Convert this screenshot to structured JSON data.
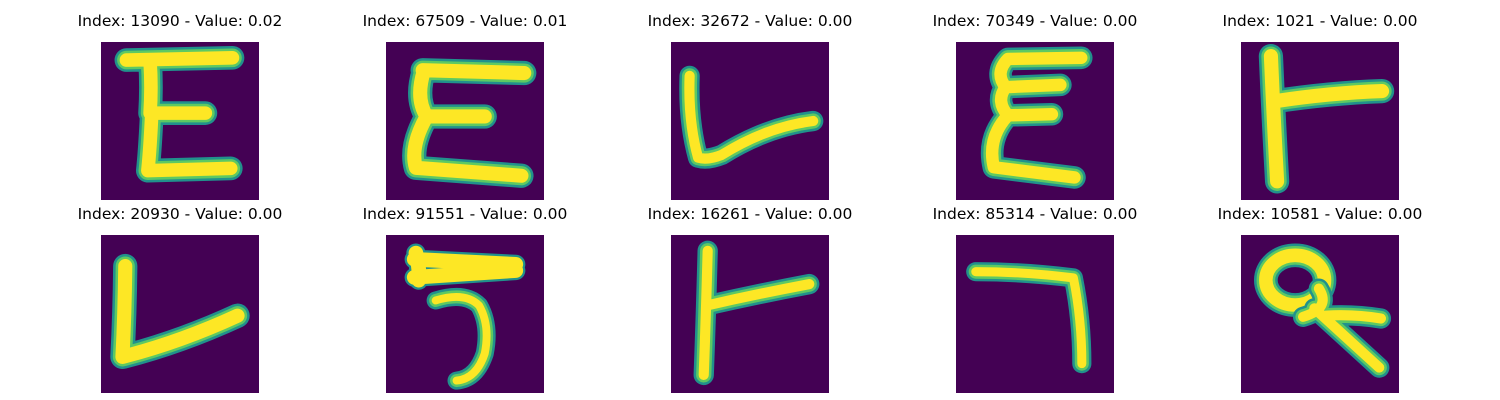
{
  "colors": {
    "background": "#440154",
    "stroke_core": "#fde725",
    "stroke_mid": "#5ec962",
    "stroke_edge": "#21918c",
    "stroke_outer": "#3b528b"
  },
  "panels": [
    {
      "index_label": "Index: 13090 - Value: 0.02",
      "glyph": "E"
    },
    {
      "index_label": "Index: 67509 - Value: 0.01",
      "glyph": "E"
    },
    {
      "index_label": "Index: 32672 - Value: 0.00",
      "glyph": "V-shape"
    },
    {
      "index_label": "Index: 70349 - Value: 0.00",
      "glyph": "E"
    },
    {
      "index_label": "Index: 1021 - Value: 0.00",
      "glyph": "T-rotated"
    },
    {
      "index_label": "Index: 20930 - Value: 0.00",
      "glyph": "L-shape"
    },
    {
      "index_label": "Index: 91551 - Value: 0.00",
      "glyph": "5-like"
    },
    {
      "index_label": "Index: 16261 - Value: 0.00",
      "glyph": "T-rotated"
    },
    {
      "index_label": "Index: 85314 - Value: 0.00",
      "glyph": "7-shape"
    },
    {
      "index_label": "Index: 10581 - Value: 0.00",
      "glyph": "loop-Q"
    }
  ]
}
